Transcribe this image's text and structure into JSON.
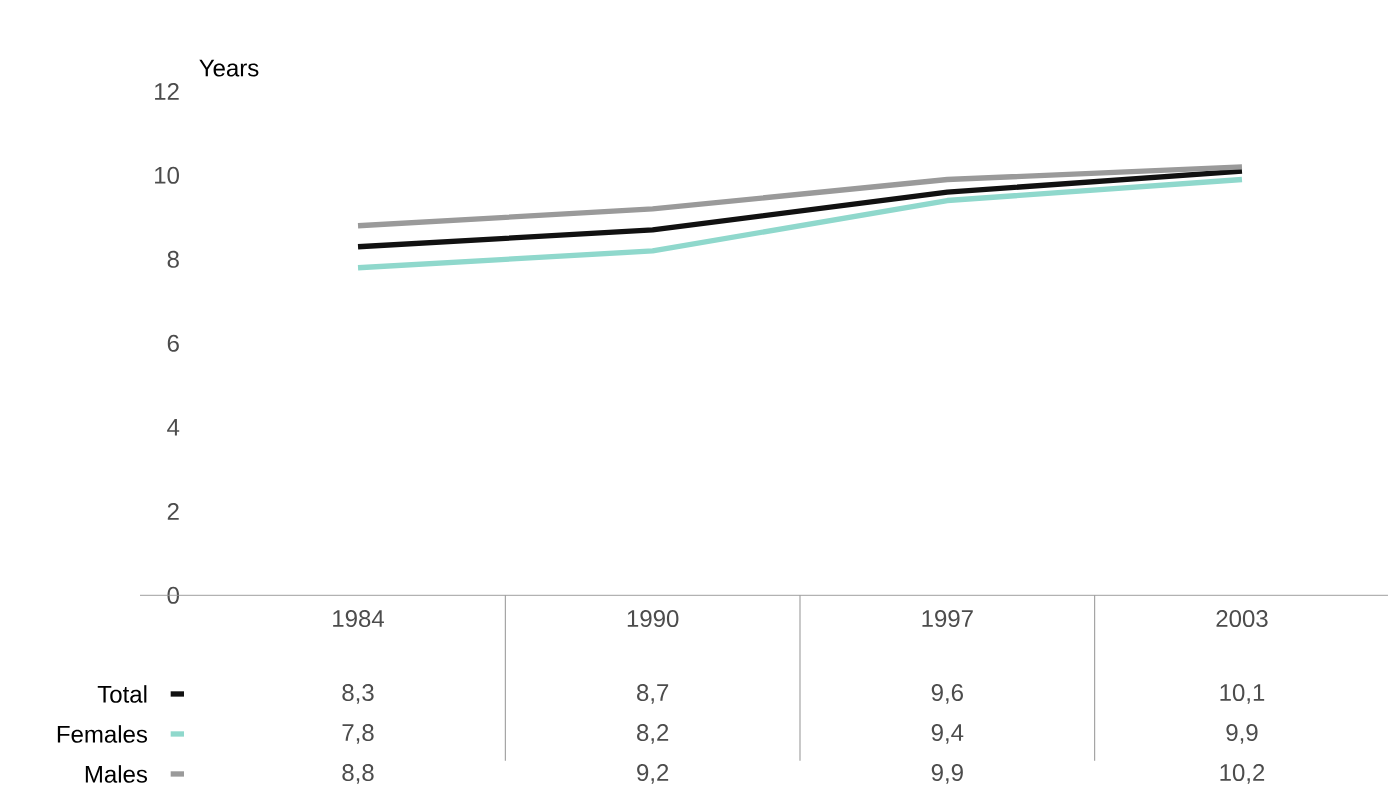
{
  "chart_data": {
    "type": "line",
    "ylabel": "Years",
    "categories": [
      "1984",
      "1990",
      "1997",
      "2003"
    ],
    "series": [
      {
        "name": "Total",
        "color": "#111111",
        "values": [
          8.3,
          8.7,
          9.6,
          10.1
        ],
        "value_labels": [
          "8,3",
          "8,7",
          "9,6",
          "10,1"
        ]
      },
      {
        "name": "Females",
        "color": "#8fd8cc",
        "values": [
          7.8,
          8.2,
          9.4,
          9.9
        ],
        "value_labels": [
          "7,8",
          "8,2",
          "9,4",
          "9,9"
        ]
      },
      {
        "name": "Males",
        "color": "#9a9a9a",
        "values": [
          8.8,
          9.2,
          9.9,
          10.2
        ],
        "value_labels": [
          "8,8",
          "9,2",
          "9,9",
          "10,2"
        ]
      }
    ],
    "ylim": [
      0,
      12
    ],
    "yticks": [
      0,
      2,
      4,
      6,
      8,
      10,
      12
    ],
    "legend": "bottom left",
    "line_style": "solid",
    "marker": "none"
  }
}
